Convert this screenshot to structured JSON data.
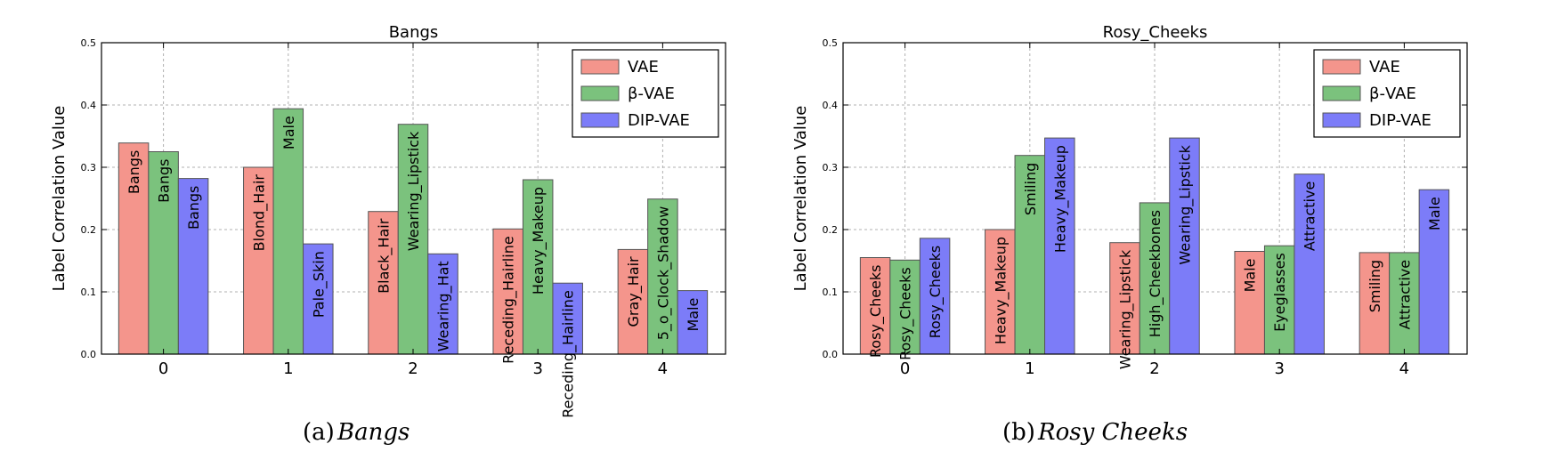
{
  "chart_data": [
    {
      "type": "bar",
      "title": "Bangs",
      "ylabel": "Label Correlation Value",
      "xlabel": "",
      "ylim": [
        0,
        0.5
      ],
      "yticks": [
        "0.0",
        "0.1",
        "0.2",
        "0.3",
        "0.4",
        "0.5"
      ],
      "categories": [
        "0",
        "1",
        "2",
        "3",
        "4"
      ],
      "grid": true,
      "legend_position": "top-right",
      "series": [
        {
          "name": "VAE",
          "color": "#f4958c",
          "values": [
            0.339,
            0.3,
            0.229,
            0.201,
            0.168
          ],
          "labels": [
            "Bangs",
            "Blond_Hair",
            "Black_Hair",
            "Receding_Hairline",
            "Gray_Hair"
          ]
        },
        {
          "name": "β-VAE",
          "color": "#7bc27d",
          "values": [
            0.325,
            0.394,
            0.369,
            0.28,
            0.249
          ],
          "labels": [
            "Bangs",
            "Male",
            "Wearing_Lipstick",
            "Heavy_Makeup",
            "5_o_Clock_Shadow"
          ]
        },
        {
          "name": "DIP-VAE",
          "color": "#7c7cf8",
          "values": [
            0.282,
            0.177,
            0.161,
            0.114,
            0.102
          ],
          "labels": [
            "Bangs",
            "Pale_Skin",
            "Wearing_Hat",
            "Receding_Hairline",
            "Male"
          ]
        }
      ]
    },
    {
      "type": "bar",
      "title": "Rosy_Cheeks",
      "ylabel": "Label Correlation Value",
      "xlabel": "",
      "ylim": [
        0,
        0.5
      ],
      "yticks": [
        "0.0",
        "0.1",
        "0.2",
        "0.3",
        "0.4",
        "0.5"
      ],
      "categories": [
        "0",
        "1",
        "2",
        "3",
        "4"
      ],
      "grid": true,
      "legend_position": "top-right",
      "series": [
        {
          "name": "VAE",
          "color": "#f4958c",
          "values": [
            0.155,
            0.2,
            0.179,
            0.165,
            0.163
          ],
          "labels": [
            "Rosy_Cheeks",
            "Heavy_Makeup",
            "Wearing_Lipstick",
            "Male",
            "Smiling"
          ]
        },
        {
          "name": "β-VAE",
          "color": "#7bc27d",
          "values": [
            0.151,
            0.319,
            0.243,
            0.174,
            0.163
          ],
          "labels": [
            "Rosy_Cheeks",
            "Smiling",
            "High_Cheekbones",
            "Eyeglasses",
            "Attractive"
          ]
        },
        {
          "name": "DIP-VAE",
          "color": "#7c7cf8",
          "values": [
            0.186,
            0.347,
            0.347,
            0.289,
            0.264
          ],
          "labels": [
            "Rosy_Cheeks",
            "Heavy_Makeup",
            "Wearing_Lipstick",
            "Attractive",
            "Male"
          ]
        }
      ]
    }
  ],
  "captions": [
    {
      "prefix": "(a)",
      "label": "Bangs"
    },
    {
      "prefix": "(b)",
      "label": "Rosy Cheeks"
    }
  ]
}
